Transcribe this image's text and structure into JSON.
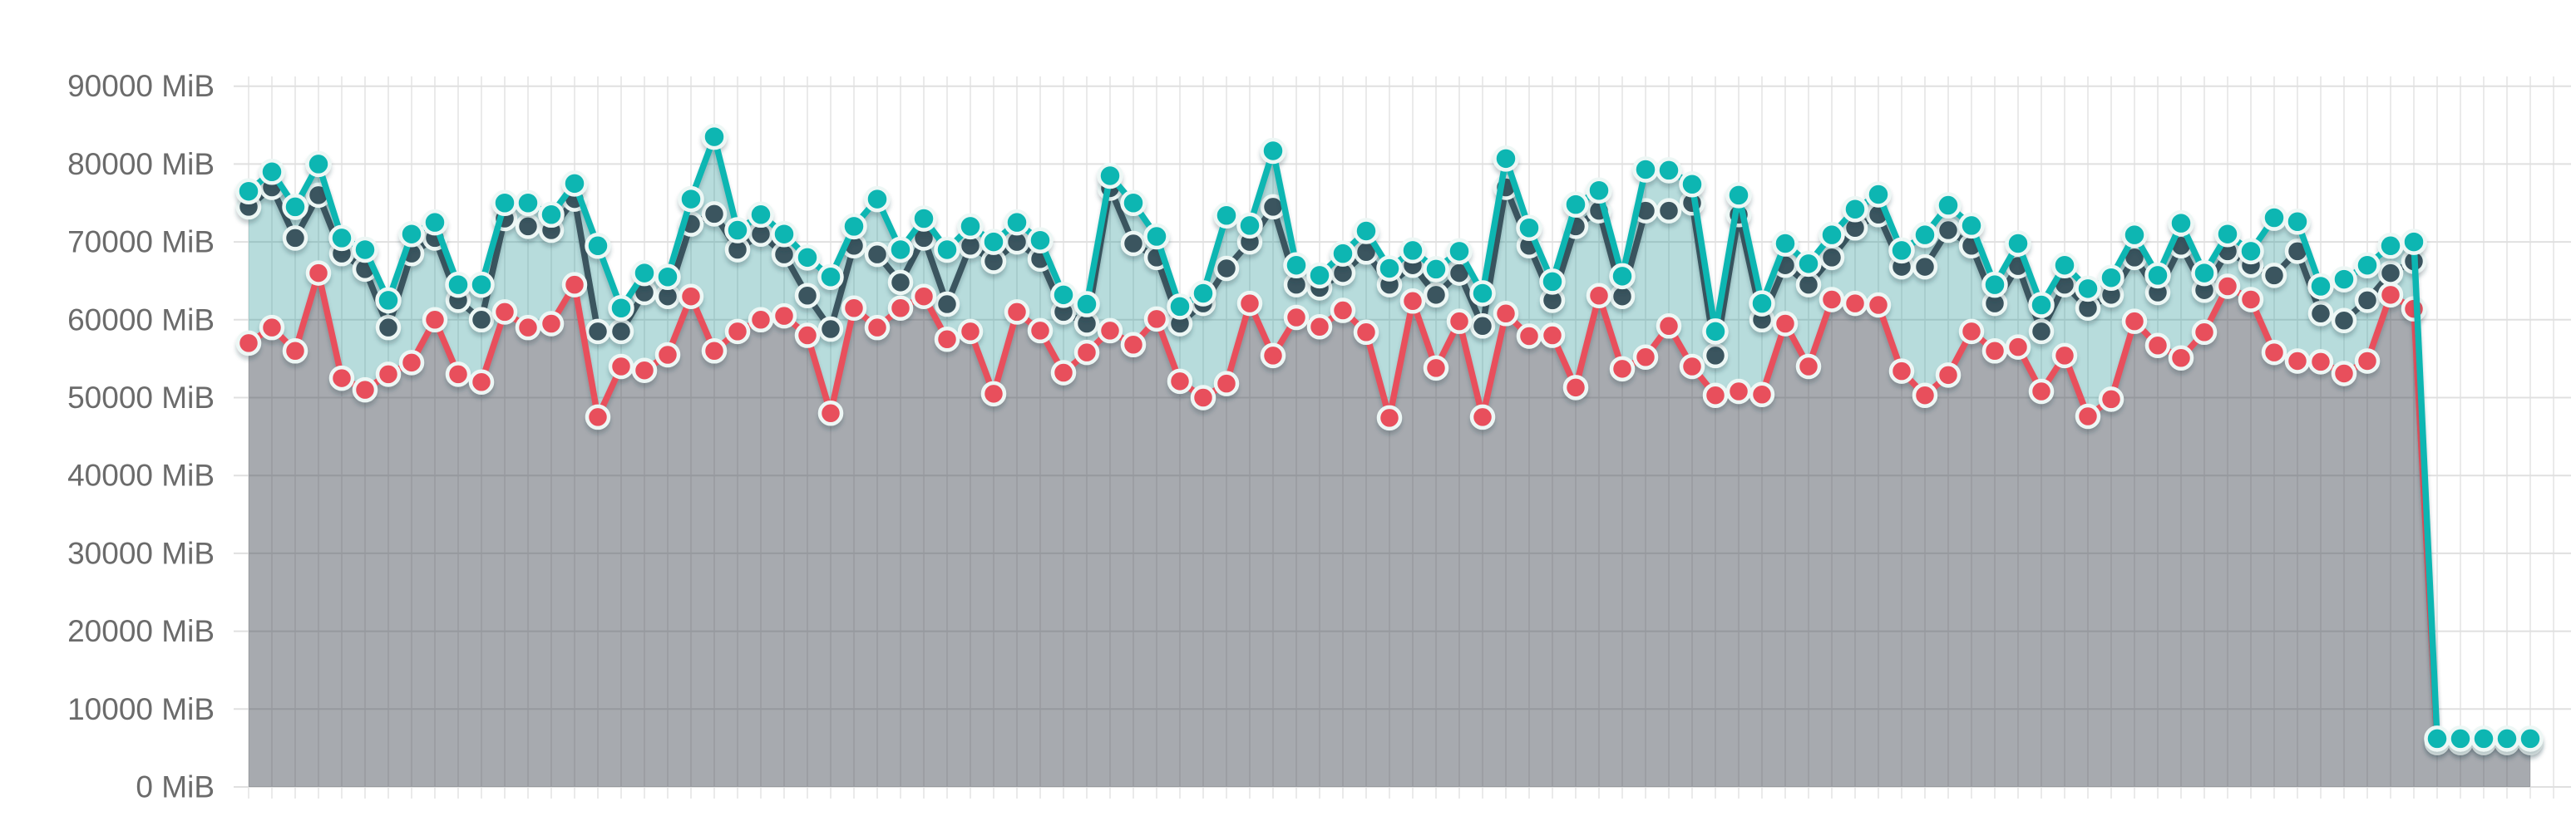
{
  "chart": {
    "unit": "MiB",
    "background": "#ffffff"
  },
  "chart_data": {
    "type": "area",
    "title": "",
    "xlabel": "",
    "ylabel": "",
    "ylim": [
      0,
      90000
    ],
    "ytick_step": 10000,
    "ytick_labels": [
      "0 MiB",
      "10000 MiB",
      "20000 MiB",
      "30000 MiB",
      "40000 MiB",
      "50000 MiB",
      "60000 MiB",
      "70000 MiB",
      "80000 MiB",
      "90000 MiB"
    ],
    "grid": true,
    "legend_position": "none",
    "axis_label_color": "#6b6b6b",
    "grid_color_h": "#e0e0e0",
    "grid_color_v": "#eaeaea",
    "dot_halo_color": "#edf7f5",
    "series": [
      {
        "name": "teal",
        "color": "#10b6b2",
        "fill": "rgba(18,138,138,0.30)",
        "values": [
          76500,
          79000,
          74500,
          80000,
          70500,
          69000,
          62500,
          71000,
          72500,
          64500,
          64500,
          75000,
          75000,
          73500,
          77500,
          69500,
          61500,
          66000,
          65500,
          75500,
          83500,
          71500,
          73500,
          71000,
          68000,
          65500,
          72000,
          75500,
          69000,
          73000,
          69000,
          72000,
          70000,
          72500,
          70200,
          63200,
          62000,
          78500,
          75000,
          70700,
          61700,
          63400,
          73400,
          72100,
          81700,
          67000,
          65700,
          68500,
          71400,
          66600,
          68900,
          66500,
          68800,
          63400,
          80700,
          71800,
          64900,
          74800,
          76600,
          65600,
          79300,
          79200,
          77400,
          58500,
          76000,
          62100,
          69800,
          67200,
          70900,
          74200,
          76100,
          68900,
          70900,
          74700,
          72100,
          64500,
          69800,
          61900,
          67000,
          64000,
          65400,
          70900,
          65700,
          72400,
          66000,
          71000,
          68800,
          73100,
          72600,
          64300,
          65200,
          67000,
          69500,
          70000,
          6200,
          6200,
          6200,
          6200,
          6200
        ]
      },
      {
        "name": "dark",
        "color": "#3a545e",
        "fill": "none",
        "values": [
          74500,
          77000,
          70500,
          76000,
          68500,
          66500,
          59000,
          68500,
          70500,
          62500,
          60000,
          73000,
          72000,
          71500,
          75500,
          58500,
          58500,
          63500,
          63000,
          72300,
          73600,
          69000,
          71000,
          68400,
          63100,
          58800,
          69500,
          68400,
          64800,
          70500,
          62000,
          69500,
          67500,
          70000,
          67800,
          61000,
          59500,
          76900,
          69800,
          68000,
          59500,
          62100,
          66600,
          70000,
          74500,
          64500,
          64100,
          66000,
          68700,
          64500,
          67000,
          63200,
          66000,
          59200,
          77000,
          69500,
          62500,
          72000,
          74000,
          63000,
          74000,
          74000,
          75000,
          55400,
          73500,
          60000,
          67000,
          64500,
          68000,
          71800,
          73500,
          66800,
          66800,
          71500,
          69500,
          62100,
          66900,
          58500,
          64500,
          61500,
          63200,
          68000,
          63500,
          69500,
          63800,
          68800,
          67000,
          65700,
          68800,
          60800,
          59900,
          62500,
          66000,
          67500
        ]
      },
      {
        "name": "red",
        "color": "#e84f5b",
        "fill": "rgba(120,18,40,0.25)",
        "values": [
          57000,
          59000,
          56000,
          66000,
          52500,
          51000,
          53000,
          54500,
          60000,
          53000,
          52000,
          61000,
          59000,
          59500,
          64500,
          47500,
          54000,
          53500,
          55500,
          63000,
          56000,
          58500,
          60000,
          60500,
          58000,
          48000,
          61500,
          59000,
          61500,
          63000,
          57500,
          58500,
          50500,
          61000,
          58600,
          53200,
          55800,
          58600,
          56800,
          60100,
          52100,
          50000,
          51800,
          62100,
          55400,
          60300,
          59100,
          61200,
          58400,
          47400,
          62400,
          53800,
          59800,
          47500,
          60800,
          57900,
          58000,
          51300,
          63100,
          53700,
          55200,
          59200,
          54000,
          50300,
          50800,
          50400,
          59500,
          54000,
          62600,
          62100,
          61900,
          53400,
          50300,
          52900,
          58500,
          56000,
          56500,
          50800,
          55400,
          47600,
          49800,
          59800,
          56700,
          55100,
          58400,
          64300,
          62600,
          55800,
          54700,
          54600,
          53100,
          54700,
          63200,
          61400,
          5700,
          5700,
          5700,
          5700,
          5700
        ]
      }
    ]
  }
}
